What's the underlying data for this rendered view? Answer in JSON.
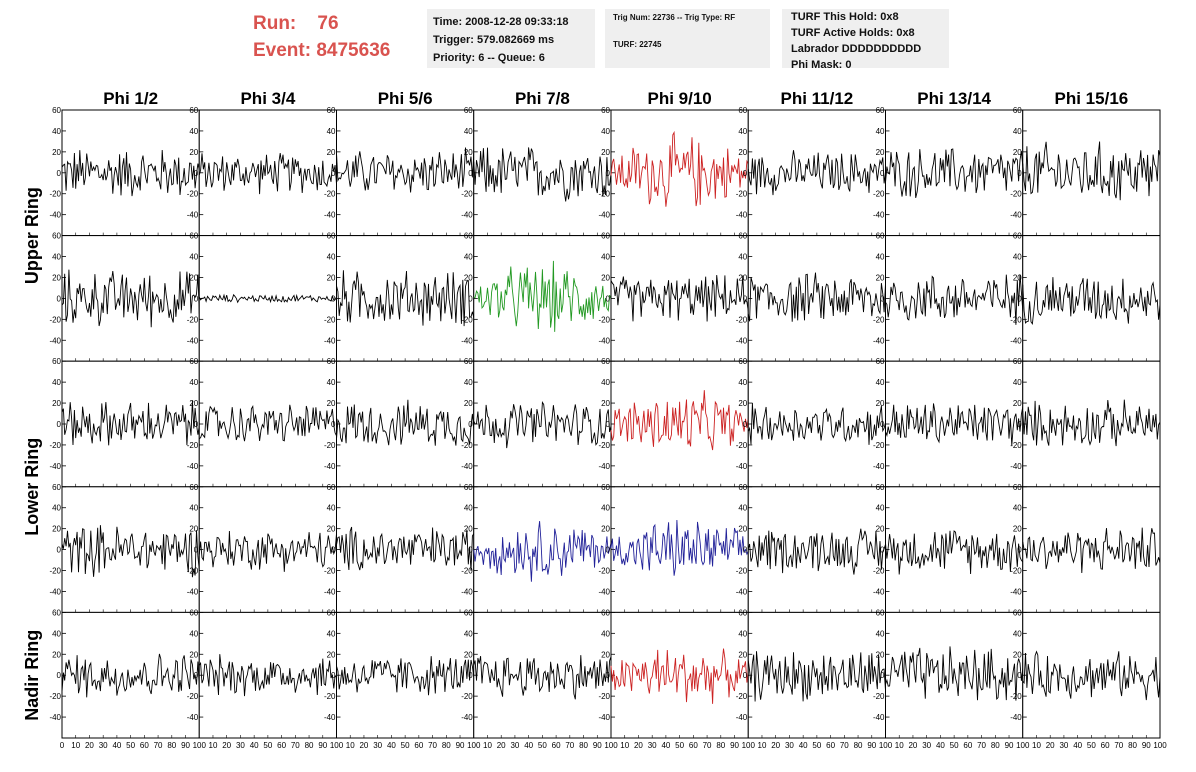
{
  "header": {
    "run_label": "Run:",
    "run_value": "76",
    "event_label": "Event:",
    "event_value": "8475636",
    "time": "Time: 2008-12-28 09:33:18",
    "trigger": "Trigger: 579.082669 ms",
    "priority": "Priority: 6 -- Queue: 6",
    "trig_info": "Trig Num: 22736 -- Trig Type: RF",
    "turf": "TURF: 22745",
    "turf_hold": "TURF This Hold: 0x8",
    "turf_active": "TURF Active Holds: 0x8",
    "labrador": "Labrador DDDDDDDDDD",
    "phi_mask": "Phi Mask: 0"
  },
  "colors": {
    "normal": "#000000",
    "highlight_red": "#cc2222",
    "highlight_green": "#229922",
    "highlight_blue": "#222299",
    "header_accent": "#d9534f"
  },
  "chart_data": {
    "type": "line",
    "columns": [
      "Phi 1/2",
      "Phi 3/4",
      "Phi 5/6",
      "Phi 7/8",
      "Phi 9/10",
      "Phi 11/12",
      "Phi 13/14",
      "Phi 15/16"
    ],
    "ring_labels": [
      "Upper Ring",
      "Lower Ring",
      "Nadir Ring"
    ],
    "rows_per_ring": [
      2,
      2,
      1
    ],
    "xlim": [
      0,
      100
    ],
    "ylim": [
      -60,
      60
    ],
    "x_ticks": [
      0,
      10,
      20,
      30,
      40,
      50,
      60,
      70,
      80,
      90,
      100
    ],
    "y_ticks": [
      -40,
      -20,
      0,
      20,
      40,
      60
    ],
    "panels": [
      [
        {
          "amp": 20,
          "color": "normal"
        },
        {
          "amp": 16,
          "color": "normal"
        },
        {
          "amp": 18,
          "color": "normal"
        },
        {
          "amp": 22,
          "color": "normal"
        },
        {
          "amp": 30,
          "color": "highlight_red"
        },
        {
          "amp": 17,
          "color": "normal"
        },
        {
          "amp": 20,
          "color": "normal"
        },
        {
          "amp": 24,
          "color": "normal"
        }
      ],
      [
        {
          "amp": 22,
          "color": "normal"
        },
        {
          "amp": 3,
          "color": "normal"
        },
        {
          "amp": 22,
          "color": "normal"
        },
        {
          "amp": 28,
          "color": "highlight_green"
        },
        {
          "amp": 18,
          "color": "normal"
        },
        {
          "amp": 20,
          "color": "normal"
        },
        {
          "amp": 20,
          "color": "normal"
        },
        {
          "amp": 20,
          "color": "normal"
        }
      ],
      [
        {
          "amp": 18,
          "color": "normal"
        },
        {
          "amp": 16,
          "color": "normal"
        },
        {
          "amp": 18,
          "color": "normal"
        },
        {
          "amp": 18,
          "color": "normal"
        },
        {
          "amp": 26,
          "color": "highlight_red"
        },
        {
          "amp": 16,
          "color": "normal"
        },
        {
          "amp": 18,
          "color": "normal"
        },
        {
          "amp": 18,
          "color": "normal"
        }
      ],
      [
        {
          "amp": 20,
          "color": "normal"
        },
        {
          "amp": 16,
          "color": "normal"
        },
        {
          "amp": 18,
          "color": "normal"
        },
        {
          "amp": 24,
          "color": "highlight_blue"
        },
        {
          "amp": 24,
          "color": "highlight_blue"
        },
        {
          "amp": 18,
          "color": "normal"
        },
        {
          "amp": 18,
          "color": "normal"
        },
        {
          "amp": 18,
          "color": "normal"
        }
      ],
      [
        {
          "amp": 18,
          "color": "normal"
        },
        {
          "amp": 16,
          "color": "normal"
        },
        {
          "amp": 16,
          "color": "normal"
        },
        {
          "amp": 18,
          "color": "normal"
        },
        {
          "amp": 24,
          "color": "highlight_red"
        },
        {
          "amp": 20,
          "color": "normal"
        },
        {
          "amp": 22,
          "color": "normal"
        },
        {
          "amp": 18,
          "color": "normal"
        }
      ]
    ]
  }
}
